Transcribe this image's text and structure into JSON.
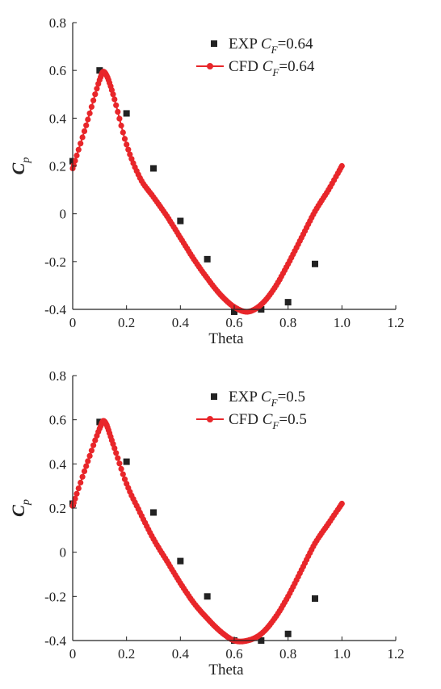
{
  "chart_data": [
    {
      "type": "scatter",
      "xlabel": "Theta",
      "ylabel": "C",
      "ylabel_sub": "p",
      "xlim": [
        0,
        1.2
      ],
      "ylim": [
        -0.4,
        0.8
      ],
      "xticks": [
        "0",
        "0.2",
        "0.4",
        "0.6",
        "0.8",
        "1.0",
        "1.2"
      ],
      "yticks": [
        "0.8",
        "0.6",
        "0.4",
        "0.2",
        "0",
        "-0.2",
        "-0.4"
      ],
      "grid": false,
      "legend_position": "top-right",
      "series": [
        {
          "name": "EXP CF=0.64",
          "label_prefix": "EXP ",
          "label_var": "C",
          "label_sub": "F",
          "label_value": "=0.64",
          "marker": "square",
          "color": "#222222",
          "x": [
            0.0,
            0.1,
            0.2,
            0.3,
            0.4,
            0.5,
            0.6,
            0.7,
            0.8,
            0.9
          ],
          "y": [
            0.22,
            0.6,
            0.42,
            0.19,
            -0.03,
            -0.19,
            -0.41,
            -0.4,
            -0.37,
            -0.21
          ]
        },
        {
          "name": "CFD CF=0.64",
          "label_prefix": "CFD ",
          "label_var": "C",
          "label_sub": "F",
          "label_value": "=0.64",
          "marker": "circle-line",
          "color": "#e8262a",
          "x": [
            0.0,
            0.05,
            0.1,
            0.12,
            0.15,
            0.2,
            0.25,
            0.3,
            0.35,
            0.4,
            0.45,
            0.5,
            0.55,
            0.6,
            0.65,
            0.7,
            0.75,
            0.8,
            0.85,
            0.9,
            0.95,
            1.0
          ],
          "y": [
            0.19,
            0.37,
            0.56,
            0.59,
            0.5,
            0.29,
            0.15,
            0.07,
            -0.01,
            -0.1,
            -0.19,
            -0.27,
            -0.34,
            -0.39,
            -0.41,
            -0.38,
            -0.31,
            -0.21,
            -0.1,
            0.01,
            0.1,
            0.2
          ]
        }
      ]
    },
    {
      "type": "scatter",
      "xlabel": "Theta",
      "ylabel": "C",
      "ylabel_sub": "p",
      "xlim": [
        0,
        1.2
      ],
      "ylim": [
        -0.4,
        0.8
      ],
      "xticks": [
        "0",
        "0.2",
        "0.4",
        "0.6",
        "0.8",
        "1.0",
        "1.2"
      ],
      "yticks": [
        "0.8",
        "0.6",
        "0.4",
        "0.2",
        "0",
        "-0.2",
        "-0.4"
      ],
      "grid": false,
      "legend_position": "top-right",
      "series": [
        {
          "name": "EXP CF=0.5",
          "label_prefix": "EXP ",
          "label_var": "C",
          "label_sub": "F",
          "label_value": "=0.5",
          "marker": "square",
          "color": "#222222",
          "x": [
            0.0,
            0.1,
            0.2,
            0.3,
            0.4,
            0.5,
            0.6,
            0.7,
            0.8,
            0.9
          ],
          "y": [
            0.22,
            0.59,
            0.41,
            0.18,
            -0.04,
            -0.2,
            -0.4,
            -0.4,
            -0.37,
            -0.21
          ]
        },
        {
          "name": "CFD CF=0.5",
          "label_prefix": "CFD ",
          "label_var": "C",
          "label_sub": "F",
          "label_value": "=0.5",
          "marker": "circle-line",
          "color": "#e8262a",
          "x": [
            0.0,
            0.05,
            0.1,
            0.12,
            0.15,
            0.2,
            0.25,
            0.3,
            0.35,
            0.4,
            0.45,
            0.5,
            0.55,
            0.6,
            0.65,
            0.7,
            0.75,
            0.8,
            0.85,
            0.9,
            0.95,
            1.0
          ],
          "y": [
            0.21,
            0.39,
            0.56,
            0.59,
            0.49,
            0.31,
            0.18,
            0.06,
            -0.04,
            -0.14,
            -0.23,
            -0.3,
            -0.36,
            -0.4,
            -0.4,
            -0.37,
            -0.3,
            -0.2,
            -0.08,
            0.04,
            0.13,
            0.22
          ]
        }
      ]
    }
  ]
}
